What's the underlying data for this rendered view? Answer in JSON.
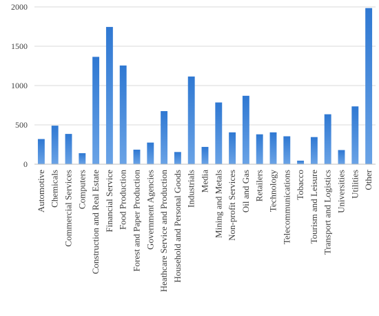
{
  "chart_data": {
    "type": "bar",
    "title": "",
    "xlabel": "",
    "ylabel": "",
    "ylim": [
      0,
      2000
    ],
    "yticks": [
      0,
      500,
      1000,
      1500,
      2000
    ],
    "grid": true,
    "bar_color": "#2f78d2",
    "bar_color_light": "#6aa3e6",
    "categories": [
      "Automotive",
      "Chemicals",
      "Commercial Services",
      "Computers",
      "Construction and Real Estate",
      "Financial Service",
      "Food Production",
      "Forest and Paper Production",
      "Government Agencies",
      "Heathcare Service and Production",
      "Household and Personal Goods",
      "Industrials",
      "Media",
      "Mining and Metals",
      "Non-profit Services",
      "Oil and Gas",
      "Retailers",
      "Technology",
      "Telecommunications",
      "Tobacco",
      "Tourism and Leisure",
      "Transport and Logistics",
      "Universities",
      "Utilities",
      "Other"
    ],
    "values": [
      320,
      490,
      385,
      140,
      1365,
      1745,
      1255,
      185,
      275,
      675,
      155,
      1115,
      220,
      785,
      405,
      870,
      380,
      405,
      355,
      45,
      345,
      635,
      180,
      735,
      1985
    ]
  }
}
